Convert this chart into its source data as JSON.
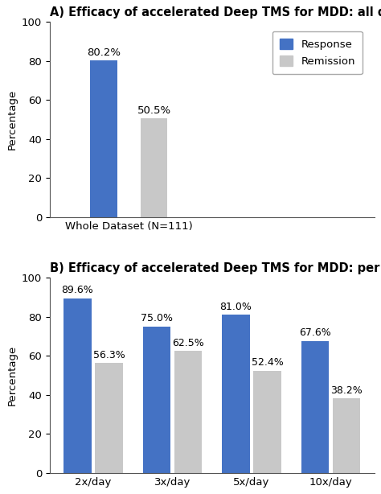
{
  "title_A": "A) Efficacy of accelerated Deep TMS for MDD: all data",
  "title_B": "B) Efficacy of accelerated Deep TMS for MDD: per protocol",
  "ylabel": "Percentage",
  "xlabel_A": "Whole Dataset (N=111)",
  "xlabels_B": [
    "2x/day",
    "3x/day",
    "5x/day",
    "10x/day"
  ],
  "data_A": {
    "response": 80.2,
    "remission": 50.5
  },
  "data_B": {
    "response": [
      89.6,
      75.0,
      81.0,
      67.6
    ],
    "remission": [
      56.3,
      62.5,
      52.4,
      38.2
    ]
  },
  "bar_color_response": "#4472C4",
  "bar_color_remission": "#C8C8C8",
  "legend_labels": [
    "Response",
    "Remission"
  ],
  "ylim": [
    0,
    100
  ],
  "yticks": [
    0,
    20,
    40,
    60,
    80,
    100
  ],
  "title_fontsize": 10.5,
  "label_fontsize": 9.5,
  "tick_fontsize": 9.5,
  "bar_label_fontsize": 9.5,
  "background_color": "#ffffff"
}
